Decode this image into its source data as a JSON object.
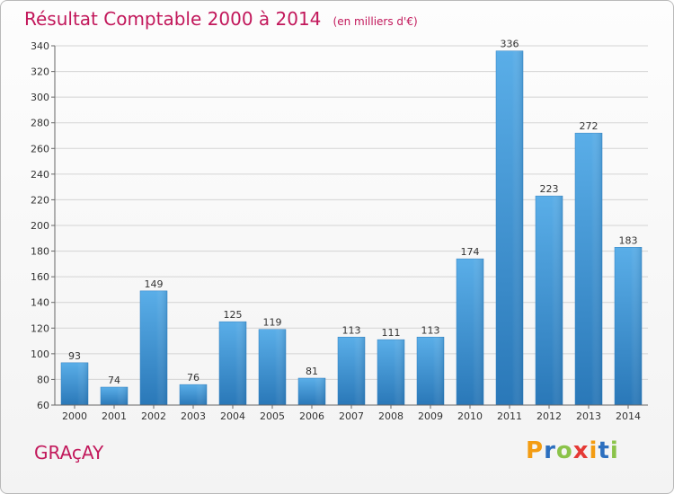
{
  "header": {
    "title": "Résultat Comptable 2000 à 2014",
    "unit": "(en milliers d'€)"
  },
  "commune": "GRAçAY",
  "logo": {
    "letters": [
      "P",
      "r",
      "o",
      "x",
      "i",
      "t",
      "i"
    ],
    "colors": [
      "#f39c12",
      "#2c6fbf",
      "#8bc34a",
      "#e53935",
      "#f39c12",
      "#2c6fbf",
      "#8bc34a"
    ]
  },
  "chart_data": {
    "type": "bar",
    "title": "Résultat Comptable 2000 à 2014",
    "categories": [
      "2000",
      "2001",
      "2002",
      "2003",
      "2004",
      "2005",
      "2006",
      "2007",
      "2008",
      "2009",
      "2010",
      "2011",
      "2012",
      "2013",
      "2014"
    ],
    "values": [
      93,
      74,
      149,
      76,
      125,
      119,
      81,
      113,
      111,
      113,
      174,
      336,
      223,
      272,
      183
    ],
    "ylim": [
      60,
      340
    ],
    "yticks": [
      60,
      80,
      100,
      120,
      140,
      160,
      180,
      200,
      220,
      240,
      260,
      280,
      300,
      320,
      340
    ],
    "grid": true,
    "bar_color": "#3d8fd1"
  }
}
